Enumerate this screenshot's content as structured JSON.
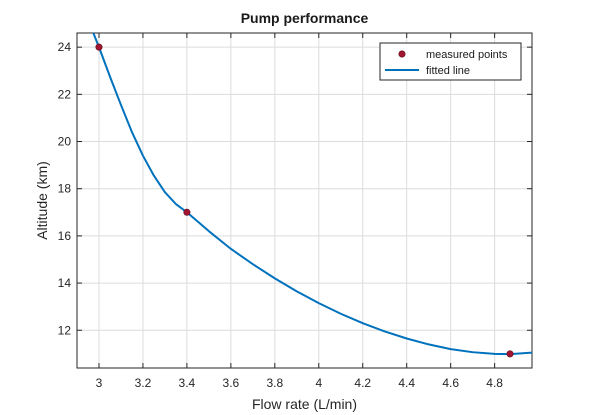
{
  "chart_data": {
    "type": "line",
    "title": "Pump performance",
    "xlabel": "Flow rate (L/min)",
    "ylabel": "Altitude (km)",
    "xlim": [
      2.9,
      4.97
    ],
    "ylim": [
      10.4,
      24.6
    ],
    "xticks": [
      3,
      3.2,
      3.4,
      3.6,
      3.8,
      4,
      4.2,
      4.4,
      4.6,
      4.8
    ],
    "yticks": [
      12,
      14,
      16,
      18,
      20,
      22,
      24
    ],
    "grid": true,
    "legend_position": "top-right",
    "series": [
      {
        "name": "measured points",
        "kind": "scatter",
        "color": "#a2142f",
        "x": [
          3.0,
          3.4,
          4.87
        ],
        "y": [
          24.0,
          17.0,
          11.0
        ]
      },
      {
        "name": "fitted line",
        "kind": "line",
        "color": "#0072bd",
        "x": [
          2.97,
          3.0,
          3.05,
          3.1,
          3.15,
          3.2,
          3.25,
          3.3,
          3.35,
          3.4,
          3.5,
          3.6,
          3.7,
          3.8,
          3.9,
          4.0,
          4.1,
          4.2,
          4.3,
          4.4,
          4.5,
          4.6,
          4.7,
          4.8,
          4.87,
          4.97
        ],
        "y": [
          24.7,
          24.0,
          22.75,
          21.55,
          20.4,
          19.4,
          18.55,
          17.85,
          17.35,
          17.0,
          16.2,
          15.45,
          14.8,
          14.2,
          13.65,
          13.15,
          12.7,
          12.3,
          11.95,
          11.65,
          11.4,
          11.2,
          11.07,
          11.0,
          10.99,
          11.05
        ]
      }
    ]
  }
}
